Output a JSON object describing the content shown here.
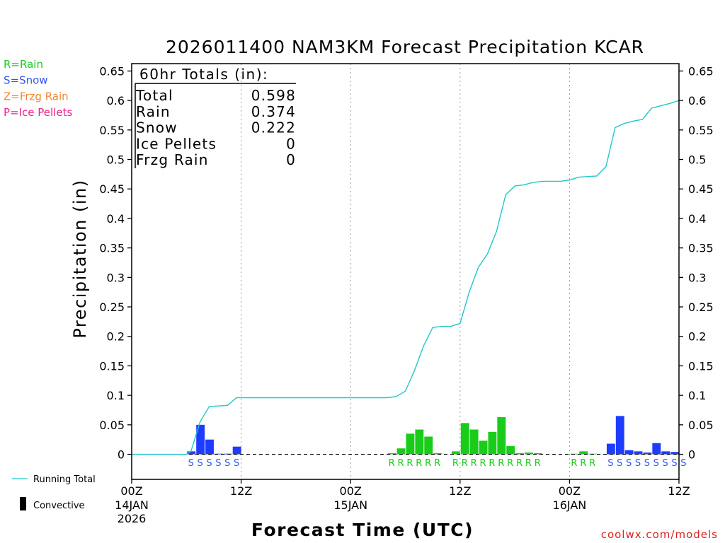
{
  "chart_data": {
    "type": "bar",
    "title": "2026011400 NAM3KM Forecast Precipitation KCAR",
    "xlabel": "Forecast Time (UTC)",
    "ylabel": "Precipitation (in)",
    "ylim": [
      -0.0425,
      0.6625
    ],
    "yticks": [
      0,
      0.05,
      0.1,
      0.15,
      0.2,
      0.25,
      0.3,
      0.35,
      0.4,
      0.45,
      0.5,
      0.55,
      0.6,
      0.65
    ],
    "ytick_labels": [
      "0",
      "0.05",
      "0.1",
      "0.15",
      "0.2",
      "0.25",
      "0.3",
      "0.35",
      "0.4",
      "0.45",
      "0.5",
      "0.55",
      "0.6",
      "0.65"
    ],
    "x_range_hours": [
      0,
      60
    ],
    "x_ticks": [
      {
        "hour": 0,
        "label": "00Z",
        "date": "14JAN",
        "year": "2026"
      },
      {
        "hour": 12,
        "label": "12Z",
        "date": "",
        "year": ""
      },
      {
        "hour": 24,
        "label": "00Z",
        "date": "15JAN",
        "year": ""
      },
      {
        "hour": 36,
        "label": "12Z",
        "date": "",
        "year": ""
      },
      {
        "hour": 48,
        "label": "00Z",
        "date": "16JAN",
        "year": ""
      },
      {
        "hour": 60,
        "label": "12Z",
        "date": "",
        "year": ""
      }
    ],
    "grid_hours": [
      12,
      24,
      36,
      48
    ],
    "ptype_legend": [
      {
        "code": "R",
        "label": "R=Rain",
        "color": "#19cc19"
      },
      {
        "code": "S",
        "label": "S=Snow",
        "color": "#3355ee"
      },
      {
        "code": "Z",
        "label": "Z=Frzg Rain",
        "color": "#ee8833"
      },
      {
        "code": "P",
        "label": "P=Ice Pellets",
        "color": "#ee2288"
      }
    ],
    "colors": {
      "rain": "#19cc19",
      "snow": "#1e3cff",
      "running_total": "#22c7c7",
      "axis": "#000000",
      "grid": "#999999"
    },
    "bars": [
      {
        "hour": 6,
        "type": "snow",
        "value": 0.005
      },
      {
        "hour": 7,
        "type": "snow",
        "value": 0.05
      },
      {
        "hour": 8,
        "type": "snow",
        "value": 0.025
      },
      {
        "hour": 9,
        "type": "snow",
        "value": 0.001
      },
      {
        "hour": 10,
        "type": "snow",
        "value": 0.001
      },
      {
        "hour": 11,
        "type": "snow",
        "value": 0.013
      },
      {
        "hour": 28,
        "type": "rain",
        "value": 0.002
      },
      {
        "hour": 29,
        "type": "rain",
        "value": 0.01
      },
      {
        "hour": 30,
        "type": "rain",
        "value": 0.035
      },
      {
        "hour": 31,
        "type": "rain",
        "value": 0.042
      },
      {
        "hour": 32,
        "type": "rain",
        "value": 0.03
      },
      {
        "hour": 33,
        "type": "rain",
        "value": 0.002
      },
      {
        "hour": 35,
        "type": "rain",
        "value": 0.005
      },
      {
        "hour": 36,
        "type": "rain",
        "value": 0.053
      },
      {
        "hour": 37,
        "type": "rain",
        "value": 0.042
      },
      {
        "hour": 38,
        "type": "rain",
        "value": 0.023
      },
      {
        "hour": 39,
        "type": "rain",
        "value": 0.038
      },
      {
        "hour": 40,
        "type": "rain",
        "value": 0.063
      },
      {
        "hour": 41,
        "type": "rain",
        "value": 0.014
      },
      {
        "hour": 42,
        "type": "rain",
        "value": 0.002
      },
      {
        "hour": 43,
        "type": "rain",
        "value": 0.003
      },
      {
        "hour": 44,
        "type": "rain",
        "value": 0.002
      },
      {
        "hour": 48,
        "type": "rain",
        "value": 0.001
      },
      {
        "hour": 49,
        "type": "rain",
        "value": 0.005
      },
      {
        "hour": 50,
        "type": "rain",
        "value": 0.001
      },
      {
        "hour": 52,
        "type": "snow",
        "value": 0.018
      },
      {
        "hour": 53,
        "type": "snow",
        "value": 0.065
      },
      {
        "hour": 54,
        "type": "snow",
        "value": 0.007
      },
      {
        "hour": 55,
        "type": "snow",
        "value": 0.005
      },
      {
        "hour": 56,
        "type": "snow",
        "value": 0.003
      },
      {
        "hour": 57,
        "type": "snow",
        "value": 0.019
      },
      {
        "hour": 58,
        "type": "snow",
        "value": 0.005
      },
      {
        "hour": 59,
        "type": "snow",
        "value": 0.004
      }
    ],
    "running_total": [
      {
        "hour": 0,
        "value": 0
      },
      {
        "hour": 6,
        "value": 0
      },
      {
        "hour": 6.5,
        "value": 0.005
      },
      {
        "hour": 7.5,
        "value": 0.055
      },
      {
        "hour": 8.5,
        "value": 0.081
      },
      {
        "hour": 10.5,
        "value": 0.083
      },
      {
        "hour": 11.5,
        "value": 0.096
      },
      {
        "hour": 28,
        "value": 0.096
      },
      {
        "hour": 29,
        "value": 0.098
      },
      {
        "hour": 30,
        "value": 0.107
      },
      {
        "hour": 31,
        "value": 0.142
      },
      {
        "hour": 32,
        "value": 0.184
      },
      {
        "hour": 33,
        "value": 0.215
      },
      {
        "hour": 34,
        "value": 0.217
      },
      {
        "hour": 35,
        "value": 0.217
      },
      {
        "hour": 36,
        "value": 0.222
      },
      {
        "hour": 37,
        "value": 0.275
      },
      {
        "hour": 38,
        "value": 0.317
      },
      {
        "hour": 39,
        "value": 0.34
      },
      {
        "hour": 40,
        "value": 0.378
      },
      {
        "hour": 41,
        "value": 0.44
      },
      {
        "hour": 42,
        "value": 0.455
      },
      {
        "hour": 43,
        "value": 0.457
      },
      {
        "hour": 44,
        "value": 0.461
      },
      {
        "hour": 45,
        "value": 0.463
      },
      {
        "hour": 47,
        "value": 0.463
      },
      {
        "hour": 48,
        "value": 0.465
      },
      {
        "hour": 49,
        "value": 0.47
      },
      {
        "hour": 50,
        "value": 0.471
      },
      {
        "hour": 51,
        "value": 0.472
      },
      {
        "hour": 52,
        "value": 0.488
      },
      {
        "hour": 53,
        "value": 0.554
      },
      {
        "hour": 54,
        "value": 0.561
      },
      {
        "hour": 55,
        "value": 0.565
      },
      {
        "hour": 56,
        "value": 0.568
      },
      {
        "hour": 57,
        "value": 0.587
      },
      {
        "hour": 58,
        "value": 0.591
      },
      {
        "hour": 59,
        "value": 0.595
      },
      {
        "hour": 60,
        "value": 0.6
      }
    ],
    "ptype_markers": [
      {
        "hour": 6,
        "letter": "S"
      },
      {
        "hour": 7,
        "letter": "S"
      },
      {
        "hour": 8,
        "letter": "S"
      },
      {
        "hour": 9,
        "letter": "S"
      },
      {
        "hour": 10,
        "letter": "S"
      },
      {
        "hour": 11,
        "letter": "S"
      },
      {
        "hour": 28,
        "letter": "R"
      },
      {
        "hour": 29,
        "letter": "R"
      },
      {
        "hour": 30,
        "letter": "R"
      },
      {
        "hour": 31,
        "letter": "R"
      },
      {
        "hour": 32,
        "letter": "R"
      },
      {
        "hour": 33,
        "letter": "R"
      },
      {
        "hour": 35,
        "letter": "R"
      },
      {
        "hour": 36,
        "letter": "R"
      },
      {
        "hour": 37,
        "letter": "R"
      },
      {
        "hour": 38,
        "letter": "R"
      },
      {
        "hour": 39,
        "letter": "R"
      },
      {
        "hour": 40,
        "letter": "R"
      },
      {
        "hour": 41,
        "letter": "R"
      },
      {
        "hour": 42,
        "letter": "R"
      },
      {
        "hour": 43,
        "letter": "R"
      },
      {
        "hour": 44,
        "letter": "R"
      },
      {
        "hour": 48,
        "letter": "R"
      },
      {
        "hour": 49,
        "letter": "R"
      },
      {
        "hour": 50,
        "letter": "R"
      },
      {
        "hour": 52,
        "letter": "S"
      },
      {
        "hour": 53,
        "letter": "S"
      },
      {
        "hour": 54,
        "letter": "S"
      },
      {
        "hour": 55,
        "letter": "S"
      },
      {
        "hour": 56,
        "letter": "S"
      },
      {
        "hour": 57,
        "letter": "S"
      },
      {
        "hour": 58,
        "letter": "S"
      },
      {
        "hour": 59,
        "letter": "S"
      },
      {
        "hour": 60,
        "letter": "S"
      }
    ],
    "totals_box": {
      "header": "60hr Totals (in):",
      "rows": [
        {
          "label": "Total",
          "value": "0.598"
        },
        {
          "label": "Rain",
          "value": "0.374"
        },
        {
          "label": "Snow",
          "value": "0.222"
        },
        {
          "label": "Ice Pellets",
          "value": "0"
        },
        {
          "label": "Frzg Rain",
          "value": "0"
        }
      ]
    },
    "bottom_legend": {
      "running_total_label": "Running Total",
      "convective_label": "Convective"
    },
    "credit": "coolwx.com/models"
  }
}
